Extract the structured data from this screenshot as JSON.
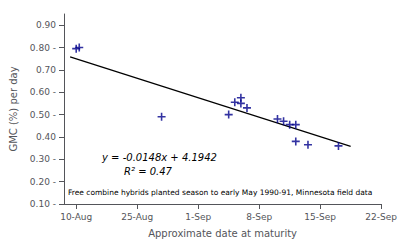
{
  "chart_data": {
    "type": "scatter",
    "xlabel": "Approximate date at maturity",
    "ylabel": "GMC (%) per day",
    "xlim": [
      -2,
      50
    ],
    "xticks": [
      {
        "value": 0,
        "label": "10-Aug"
      },
      {
        "value": 10,
        "label": "25-Aug"
      },
      {
        "value": 20,
        "label": "1-Sep"
      },
      {
        "value": 30,
        "label": "8-Sep"
      },
      {
        "value": 40,
        "label": "15-Sep"
      },
      {
        "value": 50,
        "label": "22-Sep"
      }
    ],
    "ylim": [
      0.1,
      0.95
    ],
    "yticks": [
      {
        "value": 0.1,
        "label": "0.10 -"
      },
      {
        "value": 0.2,
        "label": "0.20 -"
      },
      {
        "value": 0.3,
        "label": "0.30 -"
      },
      {
        "value": 0.4,
        "label": "0.40"
      },
      {
        "value": 0.5,
        "label": "0.50 -"
      },
      {
        "value": 0.6,
        "label": "0.60 -"
      },
      {
        "value": 0.7,
        "label": "0.70"
      },
      {
        "value": 0.8,
        "label": "0.80 -"
      },
      {
        "value": 0.9,
        "label": "0.90"
      }
    ],
    "grid": false,
    "series": [
      {
        "type": "scatter",
        "color": "#00008B",
        "marker": "+",
        "x": [
          0,
          0.5,
          14,
          25,
          26,
          27,
          27,
          28,
          33,
          34,
          35,
          36,
          36,
          38,
          43
        ],
        "values": [
          0.795,
          0.8,
          0.49,
          0.5,
          0.555,
          0.575,
          0.55,
          0.53,
          0.48,
          0.47,
          0.455,
          0.38,
          0.455,
          0.365,
          0.36
        ]
      },
      {
        "type": "line",
        "color": "#000000",
        "line_style": "solid",
        "x": [
          -1,
          45
        ],
        "values": [
          0.758,
          0.358
        ]
      }
    ],
    "annotations": [
      "y = -0.0148x + 4.1942",
      "R² = 0.47",
      "Free combine hybrids planted season to early May 1990-91, Minnesota field data"
    ]
  }
}
